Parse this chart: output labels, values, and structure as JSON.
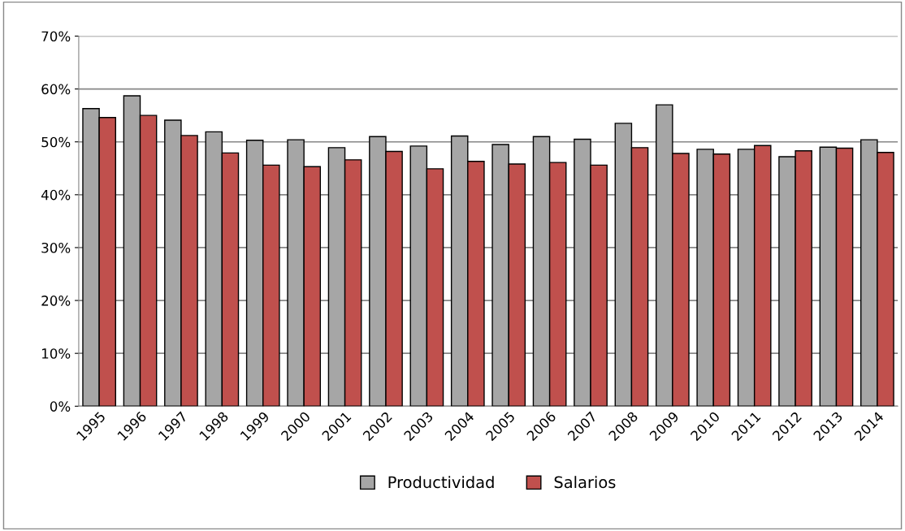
{
  "chart_data": {
    "type": "bar",
    "categories": [
      "1995",
      "1996",
      "1997",
      "1998",
      "1999",
      "2000",
      "2001",
      "2002",
      "2003",
      "2004",
      "2005",
      "2006",
      "2007",
      "2008",
      "2009",
      "2010",
      "2011",
      "2012",
      "2013",
      "2014"
    ],
    "series": [
      {
        "name": "Productividad",
        "color": "#a6a6a6",
        "values": [
          56.3,
          58.7,
          54.1,
          51.9,
          50.3,
          50.4,
          48.9,
          51.0,
          49.2,
          51.1,
          49.5,
          51.0,
          50.5,
          53.5,
          57.0,
          48.6,
          48.6,
          47.2,
          49.0,
          50.4
        ]
      },
      {
        "name": "Salarios",
        "color": "#c0504d",
        "values": [
          54.6,
          55.0,
          51.2,
          47.9,
          45.6,
          45.3,
          46.6,
          48.2,
          44.9,
          46.3,
          45.8,
          46.1,
          45.6,
          48.9,
          47.8,
          47.7,
          49.3,
          48.3,
          48.8,
          48.0
        ]
      }
    ],
    "ylim": [
      0,
      70
    ],
    "yticks": [
      {
        "value": 0,
        "label": "0%"
      },
      {
        "value": 10,
        "label": "10%"
      },
      {
        "value": 20,
        "label": "20%"
      },
      {
        "value": 30,
        "label": "30%"
      },
      {
        "value": 40,
        "label": "40%"
      },
      {
        "value": 50,
        "label": "50%"
      },
      {
        "value": 60,
        "label": "60%"
      },
      {
        "value": 70,
        "label": "70%"
      }
    ],
    "grid": "y",
    "legend": "bottom"
  }
}
